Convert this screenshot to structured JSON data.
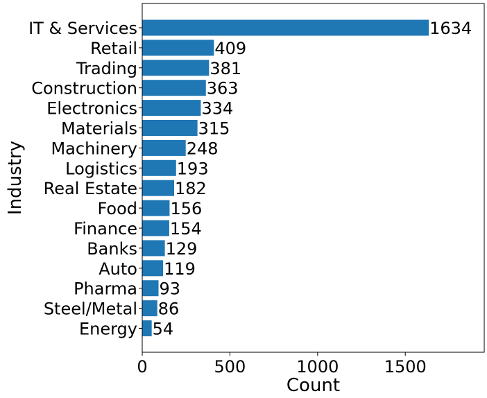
{
  "chart_data": {
    "type": "bar",
    "orientation": "horizontal",
    "title": "",
    "xlabel": "Count",
    "ylabel": "Industry",
    "xlim": [
      0,
      1950
    ],
    "xticks": [
      0,
      500,
      1000,
      1500
    ],
    "grid": false,
    "bar_color": "#1f77b4",
    "categories": [
      "IT & Services",
      "Retail",
      "Trading",
      "Construction",
      "Electronics",
      "Materials",
      "Machinery",
      "Logistics",
      "Real Estate",
      "Food",
      "Finance",
      "Banks",
      "Auto",
      "Pharma",
      "Steel/Metal",
      "Energy"
    ],
    "values": [
      1634,
      409,
      381,
      363,
      334,
      315,
      248,
      193,
      182,
      156,
      154,
      129,
      119,
      93,
      86,
      54
    ],
    "data_labels": [
      "1634",
      "409",
      "381",
      "363",
      "334",
      "315",
      "248",
      "193",
      "182",
      "156",
      "154",
      "129",
      "119",
      "93",
      "86",
      "54"
    ]
  }
}
